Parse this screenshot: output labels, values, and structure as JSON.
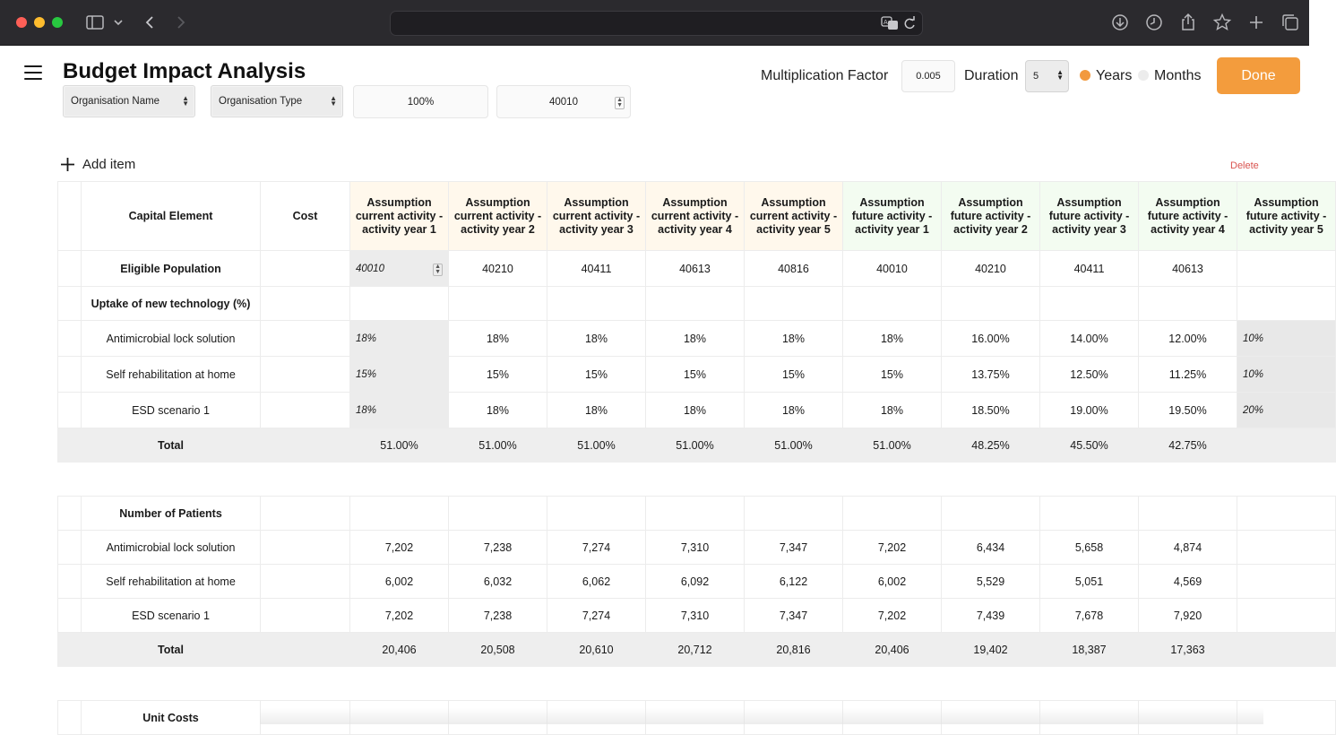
{
  "page": {
    "title": "Budget Impact Analysis"
  },
  "filters": {
    "organisation_name": "Organisation Name",
    "organisation_type": "Organisation Type",
    "percent": "100%",
    "population": "40010"
  },
  "settings": {
    "multiplication_label": "Multiplication Factor",
    "multiplication_value": "0.005",
    "duration_label": "Duration",
    "duration_value": "5",
    "unit_years": "Years",
    "unit_months": "Months",
    "unit_selected": "Years",
    "done_label": "Done"
  },
  "toolbar": {
    "add_item": "Add item",
    "delete": "Delete"
  },
  "table": {
    "col_capital": "Capital Element",
    "col_cost": "Cost",
    "years": [
      "Assumption current activity - activity year 1",
      "Assumption current activity - activity year 2",
      "Assumption current activity - activity year 3",
      "Assumption current activity - activity year 4",
      "Assumption current activity - activity year 5",
      "Assumption future activity - activity year 1",
      "Assumption future activity - activity year 2",
      "Assumption future activity - activity year 3",
      "Assumption future activity - activity year 4",
      "Assumption future activity - activity year 5"
    ],
    "eligible_label": "Eligible Population",
    "eligible": [
      "40010",
      "40210",
      "40411",
      "40613",
      "40816",
      "40010",
      "40210",
      "40411",
      "40613",
      ""
    ],
    "uptake_label": "Uptake of new technology (%)",
    "uptake_rows": [
      {
        "label": "Antimicrobial lock solution",
        "values": [
          "18%",
          "18%",
          "18%",
          "18%",
          "18%",
          "18%",
          "16.00%",
          "14.00%",
          "12.00%",
          "10%"
        ]
      },
      {
        "label": "Self rehabilitation at home",
        "values": [
          "15%",
          "15%",
          "15%",
          "15%",
          "15%",
          "15%",
          "13.75%",
          "12.50%",
          "11.25%",
          "10%"
        ]
      },
      {
        "label": "ESD scenario 1",
        "values": [
          "18%",
          "18%",
          "18%",
          "18%",
          "18%",
          "18%",
          "18.50%",
          "19.00%",
          "19.50%",
          "20%"
        ]
      }
    ],
    "uptake_total_label": "Total",
    "uptake_total": [
      "51.00%",
      "51.00%",
      "51.00%",
      "51.00%",
      "51.00%",
      "51.00%",
      "48.25%",
      "45.50%",
      "42.75%",
      ""
    ]
  },
  "patients": {
    "header": "Number of Patients",
    "rows": [
      {
        "label": "Antimicrobial lock solution",
        "values": [
          "7,202",
          "7,238",
          "7,274",
          "7,310",
          "7,347",
          "7,202",
          "6,434",
          "5,658",
          "4,874",
          ""
        ]
      },
      {
        "label": "Self rehabilitation at home",
        "values": [
          "6,002",
          "6,032",
          "6,062",
          "6,092",
          "6,122",
          "6,002",
          "5,529",
          "5,051",
          "4,569",
          ""
        ]
      },
      {
        "label": "ESD scenario 1",
        "values": [
          "7,202",
          "7,238",
          "7,274",
          "7,310",
          "7,347",
          "7,202",
          "7,439",
          "7,678",
          "7,920",
          ""
        ]
      }
    ],
    "total_label": "Total",
    "total": [
      "20,406",
      "20,508",
      "20,610",
      "20,712",
      "20,816",
      "20,406",
      "19,402",
      "18,387",
      "17,363",
      ""
    ]
  },
  "unit_costs": {
    "header": "Unit Costs"
  }
}
